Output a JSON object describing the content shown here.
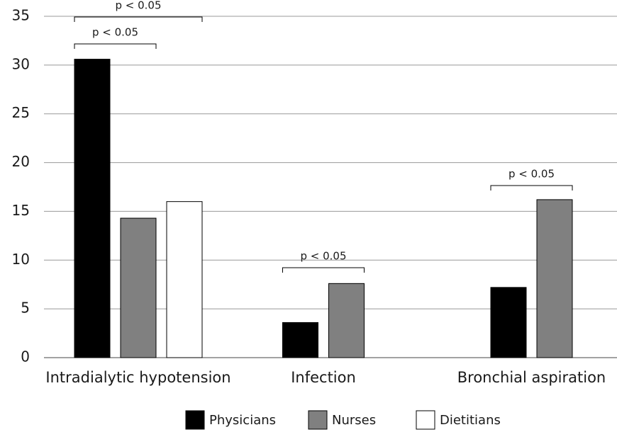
{
  "chart_data": {
    "type": "bar",
    "categories": [
      "Intradialytic hypotension",
      "Infection",
      "Bronchial aspiration"
    ],
    "series": [
      {
        "name": "Physicians",
        "color": "#000000",
        "values": [
          30.6,
          3.6,
          7.2
        ]
      },
      {
        "name": "Nurses",
        "color": "#808080",
        "values": [
          14.3,
          7.6,
          16.2
        ]
      },
      {
        "name": "Dietitians",
        "color": "#ffffff",
        "values": [
          16.0,
          null,
          null
        ]
      }
    ],
    "ylim": [
      0,
      35
    ],
    "yticks": [
      0,
      5,
      10,
      15,
      20,
      25,
      30,
      35
    ],
    "grid": true,
    "legend": "bottom",
    "annotations": [
      "p < 0.05",
      "p < 0.05",
      "p < 0.05",
      "p < 0.05"
    ]
  }
}
